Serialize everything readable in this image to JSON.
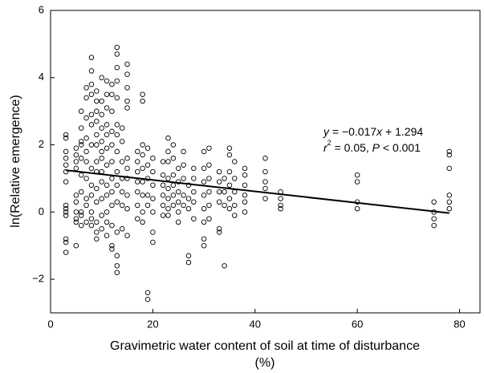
{
  "chart_data": {
    "type": "scatter",
    "x_label": "Gravimetric water content of soil at time of disturbance",
    "x_label_unit": "(%)",
    "y_label": "ln(Relative emergence)",
    "xlim": [
      0,
      84
    ],
    "ylim": [
      -3,
      6
    ],
    "xticks": [
      0,
      20,
      40,
      60,
      80
    ],
    "yticks": [
      {
        "value": -2,
        "label": "−2"
      },
      0,
      2,
      4,
      6
    ],
    "marker_color": "#000000",
    "annotation": [
      [
        "y",
        " = −0.017",
        "x",
        " + 1.294"
      ],
      [
        "r",
        "2",
        " = 0.05, ",
        "P",
        " < 0.001"
      ]
    ],
    "fit": {
      "x": [
        3,
        78
      ],
      "slope": -0.017,
      "intercept": 1.294
    },
    "x": [
      3,
      3,
      3,
      3,
      3,
      3,
      3,
      3,
      3,
      3,
      3,
      3,
      3,
      3,
      5,
      5,
      5,
      5,
      5,
      5,
      5,
      5,
      5,
      5,
      6,
      6,
      6,
      6,
      6,
      6,
      6,
      6,
      6,
      6,
      7,
      7,
      7,
      7,
      7,
      7,
      7,
      7,
      7,
      7,
      8,
      8,
      8,
      8,
      8,
      8,
      8,
      8,
      8,
      8,
      8,
      8,
      8,
      9,
      9,
      9,
      9,
      9,
      9,
      9,
      9,
      9,
      9,
      9,
      9,
      9,
      10,
      10,
      10,
      10,
      10,
      10,
      10,
      10,
      10,
      10,
      10,
      10,
      11,
      11,
      11,
      11,
      11,
      11,
      11,
      11,
      11,
      11,
      11,
      11,
      12,
      12,
      12,
      12,
      12,
      12,
      12,
      12,
      12,
      12,
      12,
      12,
      13,
      13,
      13,
      13,
      13,
      13,
      13,
      13,
      13,
      13,
      13,
      13,
      13,
      13,
      13,
      14,
      14,
      14,
      14,
      14,
      14,
      14,
      15,
      15,
      15,
      15,
      15,
      15,
      15,
      15,
      15,
      15,
      15,
      17,
      17,
      17,
      17,
      17,
      17,
      17,
      18,
      18,
      18,
      18,
      18,
      18,
      18,
      18,
      18,
      19,
      19,
      19,
      19,
      19,
      19,
      19,
      20,
      20,
      20,
      20,
      20,
      20,
      20,
      22,
      22,
      22,
      22,
      22,
      22,
      23,
      23,
      23,
      23,
      23,
      23,
      23,
      23,
      24,
      24,
      24,
      24,
      24,
      24,
      25,
      25,
      25,
      25,
      25,
      25,
      26,
      26,
      26,
      26,
      26,
      27,
      27,
      27,
      27,
      27,
      28,
      28,
      28,
      28,
      28,
      30,
      30,
      30,
      30,
      30,
      30,
      30,
      30,
      31,
      31,
      31,
      31,
      31,
      31,
      33,
      33,
      33,
      33,
      33,
      33,
      34,
      34,
      34,
      34,
      35,
      35,
      35,
      35,
      35,
      35,
      36,
      36,
      36,
      36,
      36,
      38,
      38,
      38,
      38,
      38,
      38,
      42,
      42,
      42,
      42,
      42,
      45,
      45,
      45,
      45,
      60,
      60,
      60,
      60,
      75,
      75,
      75,
      75,
      78,
      78,
      78,
      78,
      78,
      78
    ],
    "values": [
      2.3,
      2.2,
      1.8,
      1.6,
      1.4,
      1.2,
      0.9,
      0.2,
      0.0,
      -0.1,
      -0.8,
      -0.9,
      -1.2,
      0.1,
      1.9,
      1.7,
      1.5,
      1.3,
      0.5,
      0.3,
      0.0,
      -0.2,
      -0.3,
      -1.0,
      2.5,
      2.0,
      1.6,
      1.1,
      0.6,
      0.0,
      -0.1,
      -0.4,
      3.0,
      2.1,
      3.7,
      3.4,
      2.2,
      1.8,
      1.5,
      1.0,
      0.4,
      0.2,
      -0.3,
      2.8,
      4.6,
      4.2,
      3.8,
      3.5,
      2.9,
      2.6,
      2.0,
      1.3,
      0.8,
      0.5,
      0.0,
      -0.2,
      -0.4,
      3.6,
      3.0,
      2.7,
      2.3,
      2.0,
      1.5,
      1.2,
      0.7,
      0.3,
      -0.3,
      -0.6,
      -0.8,
      3.3,
      4.0,
      3.3,
      2.9,
      2.5,
      2.1,
      1.8,
      1.2,
      0.9,
      0.4,
      -0.1,
      -0.5,
      1.6,
      3.9,
      3.5,
      3.1,
      2.6,
      2.3,
      1.9,
      1.4,
      0.8,
      0.5,
      0.0,
      -0.7,
      -0.3,
      3.8,
      3.5,
      3.0,
      2.4,
      2.0,
      1.5,
      1.0,
      0.6,
      0.2,
      -0.4,
      -1.0,
      -1.1,
      4.9,
      4.7,
      3.9,
      3.4,
      2.6,
      2.3,
      1.8,
      1.2,
      0.8,
      0.3,
      -0.6,
      -1.3,
      -1.6,
      -1.8,
      4.3,
      2.1,
      1.5,
      1.0,
      0.6,
      0.2,
      -0.5,
      2.5,
      4.4,
      4.1,
      3.7,
      3.3,
      3.1,
      1.6,
      1.3,
      1.0,
      0.5,
      0.1,
      -0.7,
      1.5,
      1.2,
      0.9,
      0.6,
      0.2,
      -0.2,
      1.8,
      3.5,
      3.3,
      2.0,
      1.7,
      1.3,
      0.9,
      0.5,
      0.0,
      -0.3,
      1.9,
      1.4,
      1.0,
      0.5,
      0.2,
      -2.4,
      -2.6,
      1.6,
      1.2,
      0.8,
      0.4,
      0.0,
      -0.6,
      -0.9,
      1.5,
      1.1,
      0.8,
      0.5,
      0.2,
      -0.1,
      2.2,
      1.8,
      1.5,
      1.0,
      0.7,
      0.4,
      0.1,
      -0.1,
      2.0,
      1.6,
      1.1,
      0.8,
      0.5,
      0.2,
      1.3,
      0.9,
      0.6,
      0.3,
      0.0,
      -0.3,
      1.8,
      1.4,
      1.0,
      0.5,
      0.2,
      0.8,
      0.4,
      0.1,
      -1.3,
      -1.5,
      1.3,
      1.0,
      0.6,
      0.3,
      -0.2,
      1.8,
      1.3,
      0.9,
      0.5,
      0.1,
      -0.3,
      -0.8,
      -1.0,
      1.9,
      1.4,
      1.0,
      0.6,
      0.2,
      -0.2,
      1.2,
      0.9,
      0.6,
      0.3,
      -0.5,
      -0.6,
      1.0,
      0.6,
      0.2,
      -1.6,
      1.9,
      1.7,
      1.2,
      0.8,
      0.4,
      0.1,
      1.5,
      1.0,
      0.6,
      0.2,
      -0.1,
      1.3,
      1.1,
      0.8,
      0.5,
      0.3,
      0.0,
      1.6,
      1.2,
      0.9,
      0.7,
      0.4,
      0.6,
      0.4,
      0.2,
      0.1,
      1.1,
      0.9,
      0.3,
      0.1,
      0.3,
      0.0,
      -0.2,
      -0.4,
      1.8,
      1.7,
      1.3,
      0.5,
      0.3,
      0.1
    ]
  }
}
